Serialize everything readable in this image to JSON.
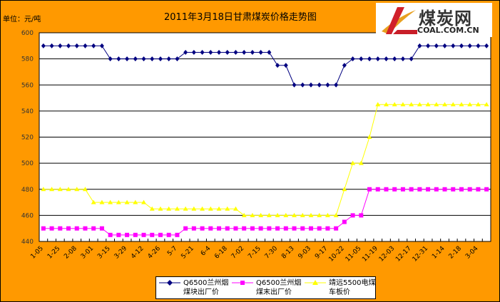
{
  "header": {
    "unit": "单位：元/吨",
    "title": "2011年3月18日甘肃煤炭价格走势图"
  },
  "logo": {
    "cn": "煤炭网",
    "en": "COAL.COM.CN"
  },
  "chart_data": {
    "type": "line",
    "title": "2011年3月18日甘肃煤炭价格走势图",
    "ylabel": "单位：元/吨",
    "ylim": [
      440,
      600
    ],
    "yticks": [
      440,
      460,
      480,
      500,
      520,
      540,
      560,
      580,
      600
    ],
    "grid": true,
    "legend_position": "bottom",
    "point_count": 54,
    "x_tick_labels": [
      "1-05",
      "1-25",
      "2-08",
      "3-01",
      "3-15",
      "3-29",
      "4-12",
      "4-26",
      "5-7",
      "5-21",
      "6-4",
      "6-18",
      "7-02",
      "7-15",
      "7-30",
      "8-13",
      "9-03",
      "9-17",
      "10-22",
      "11-05",
      "11-19",
      "12-03",
      "12-17",
      "12-31",
      "1-14",
      "2-18",
      "3-04"
    ],
    "series": [
      {
        "name": "Q6500兰州烟煤块出厂价",
        "color": "#000080",
        "marker": "diamond",
        "values": [
          590,
          590,
          590,
          590,
          590,
          590,
          590,
          590,
          580,
          580,
          580,
          580,
          580,
          580,
          580,
          580,
          580,
          585,
          585,
          585,
          585,
          585,
          585,
          585,
          585,
          585,
          585,
          585,
          575,
          575,
          560,
          560,
          560,
          560,
          560,
          560,
          575,
          580,
          580,
          580,
          580,
          580,
          580,
          580,
          580,
          590,
          590,
          590,
          590,
          590,
          590,
          590,
          590,
          590
        ]
      },
      {
        "name": "Q6500兰州烟煤末出厂价",
        "color": "#FF00FF",
        "marker": "square",
        "values": [
          450,
          450,
          450,
          450,
          450,
          450,
          450,
          450,
          445,
          445,
          445,
          445,
          445,
          445,
          445,
          445,
          445,
          450,
          450,
          450,
          450,
          450,
          450,
          450,
          450,
          450,
          450,
          450,
          450,
          450,
          450,
          450,
          450,
          450,
          450,
          450,
          455,
          460,
          460,
          480,
          480,
          480,
          480,
          480,
          480,
          480,
          480,
          480,
          480,
          480,
          480,
          480,
          480,
          480
        ]
      },
      {
        "name": "靖远5500电煤车板价",
        "color": "#FFFF00",
        "marker": "triangle",
        "values": [
          480,
          480,
          480,
          480,
          480,
          480,
          470,
          470,
          470,
          470,
          470,
          470,
          470,
          465,
          465,
          465,
          465,
          465,
          465,
          465,
          465,
          465,
          465,
          465,
          460,
          460,
          460,
          460,
          460,
          460,
          460,
          460,
          460,
          460,
          460,
          460,
          480,
          500,
          500,
          520,
          545,
          545,
          545,
          545,
          545,
          545,
          545,
          545,
          545,
          545,
          545,
          545,
          545,
          545
        ]
      }
    ]
  }
}
